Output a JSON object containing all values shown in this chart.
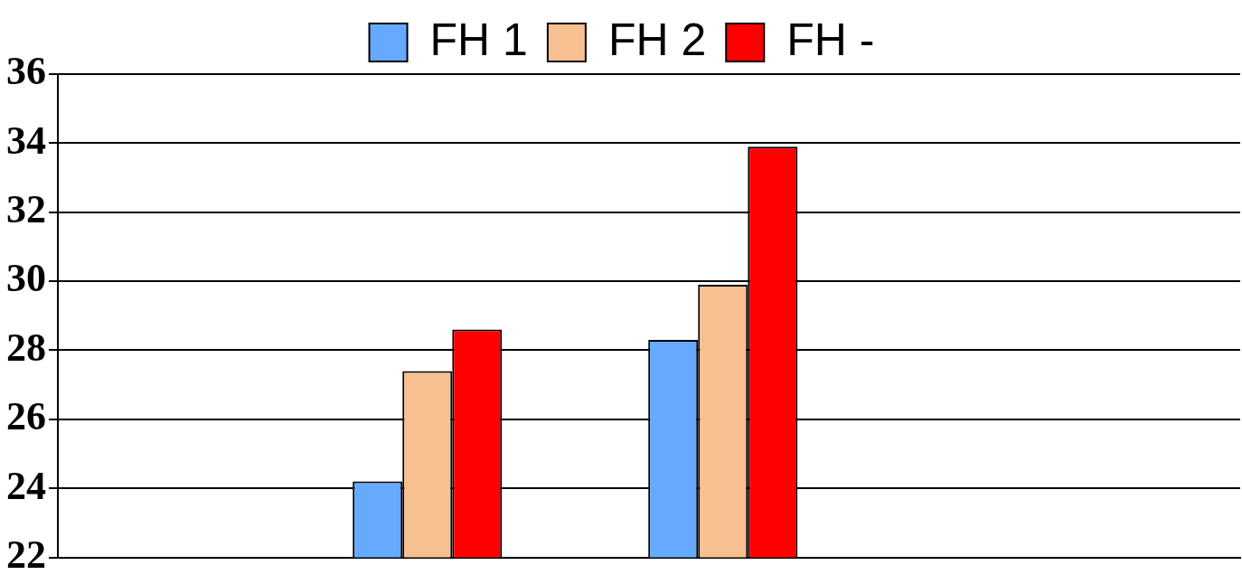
{
  "chart_data": {
    "type": "bar",
    "categories": [
      null,
      null
    ],
    "series": [
      {
        "name": "FH 1",
        "color": "#66aaff",
        "values": [
          24.2,
          28.3
        ]
      },
      {
        "name": "FH 2",
        "color": "#f8c090",
        "values": [
          27.4,
          29.9
        ]
      },
      {
        "name": "FH -",
        "color": "#ff0000",
        "values": [
          28.6,
          33.9
        ]
      }
    ],
    "ylim": [
      22,
      36
    ],
    "yticks": [
      22,
      24,
      26,
      28,
      30,
      32,
      34,
      36
    ],
    "grid": "y",
    "legend": "top",
    "tick_labels": "y"
  }
}
